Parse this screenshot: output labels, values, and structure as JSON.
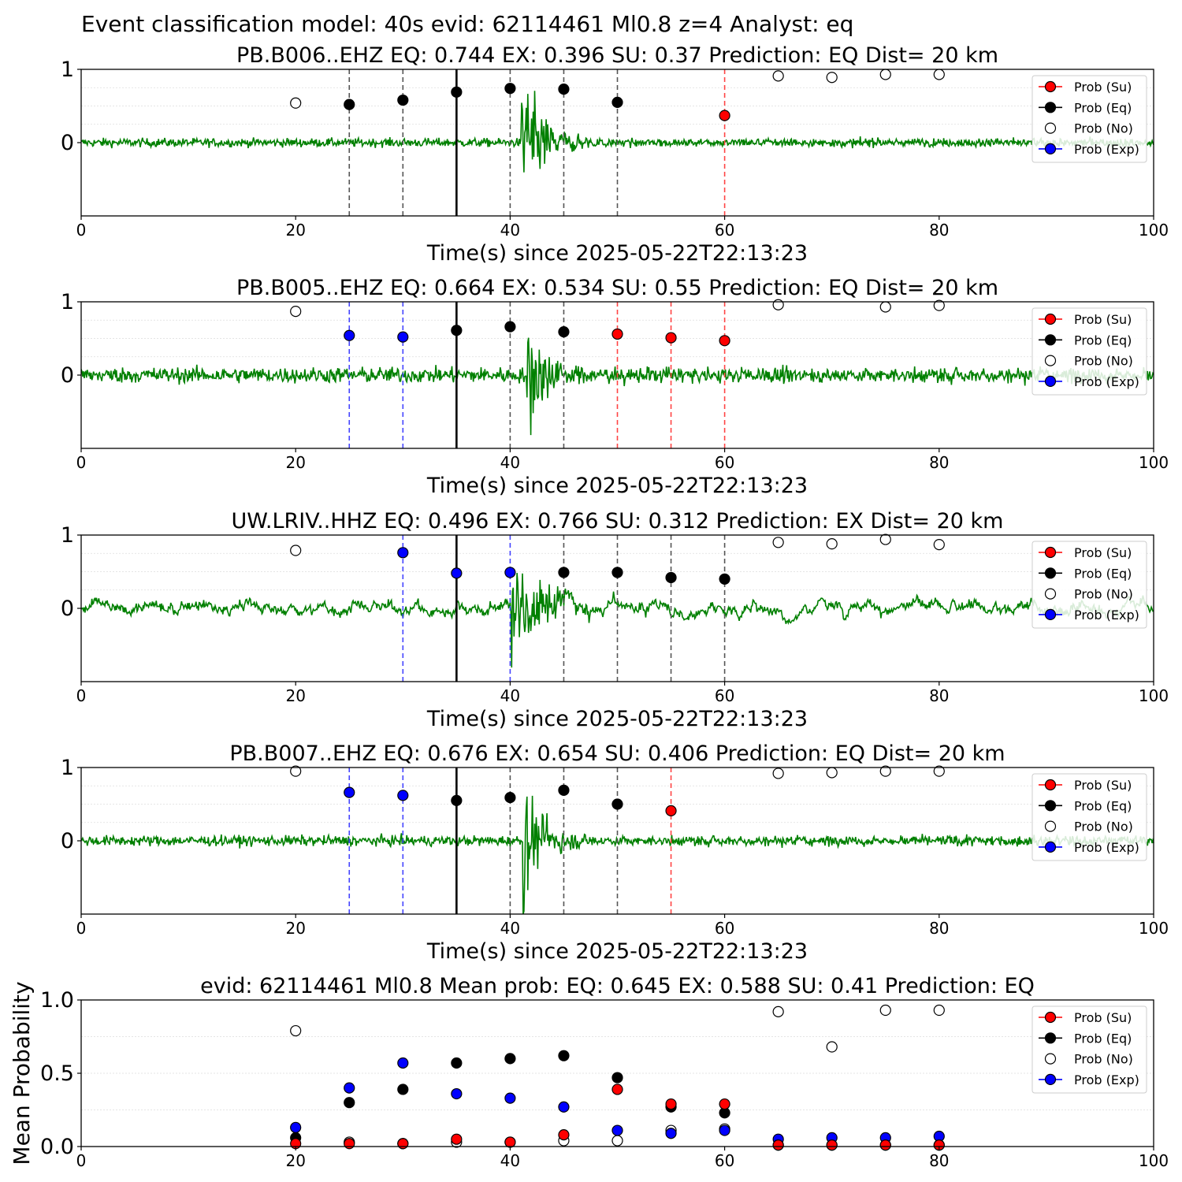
{
  "suptitle": "Event classification model: 40s evid: 62114461 Ml0.8 z=4 Analyst: eq",
  "colors": {
    "waveform": "#008000",
    "su": "#ff0000",
    "eq": "#000000",
    "no": "#ffffff",
    "exp": "#0000ff",
    "legend_su_line": "#ff0000",
    "legend_eq_line": "#000000",
    "legend_exp_line": "#0000ff"
  },
  "legend": [
    "Prob (Su)",
    "Prob (Eq)",
    "Prob (No)",
    "Prob (Exp)"
  ],
  "chart_data": [
    {
      "type": "scatter",
      "title": "PB.B006..EHZ   EQ: 0.744  EX: 0.396  SU: 0.37   Prediction: EQ    Dist= 20 km",
      "xlabel": "Time(s) since 2025-05-22T22:13:23",
      "xlim": [
        0,
        100
      ],
      "ylim": [
        -1,
        1
      ],
      "xticks": [
        "0",
        "20",
        "40",
        "60",
        "80",
        "100"
      ],
      "yticks": [
        "0",
        "1"
      ],
      "pick_time": 35,
      "windows": [
        {
          "t": 25,
          "class": "eq"
        },
        {
          "t": 30,
          "class": "eq"
        },
        {
          "t": 40,
          "class": "eq"
        },
        {
          "t": 45,
          "class": "eq"
        },
        {
          "t": 50,
          "class": "eq"
        },
        {
          "t": 60,
          "class": "su"
        }
      ],
      "points": [
        {
          "t": 20,
          "p": 0.54,
          "class": "no"
        },
        {
          "t": 25,
          "p": 0.52,
          "class": "eq"
        },
        {
          "t": 30,
          "p": 0.58,
          "class": "eq"
        },
        {
          "t": 35,
          "p": 0.69,
          "class": "eq"
        },
        {
          "t": 40,
          "p": 0.74,
          "class": "eq"
        },
        {
          "t": 45,
          "p": 0.73,
          "class": "eq"
        },
        {
          "t": 50,
          "p": 0.55,
          "class": "eq"
        },
        {
          "t": 60,
          "p": 0.37,
          "class": "su"
        },
        {
          "t": 65,
          "p": 0.91,
          "class": "no"
        },
        {
          "t": 70,
          "p": 0.89,
          "class": "no"
        },
        {
          "t": 75,
          "p": 0.93,
          "class": "no"
        },
        {
          "t": 80,
          "p": 0.93,
          "class": "no"
        }
      ],
      "waveform": {
        "noise": 0.05,
        "onset": 41.0,
        "peak": 0.95,
        "decay": 2.2,
        "lowfreq": 0
      }
    },
    {
      "type": "scatter",
      "title": "PB.B005..EHZ   EQ: 0.664  EX: 0.534  SU: 0.55   Prediction: EQ    Dist= 20 km",
      "xlabel": "Time(s) since 2025-05-22T22:13:23",
      "xlim": [
        0,
        100
      ],
      "ylim": [
        -1,
        1
      ],
      "xticks": [
        "0",
        "20",
        "40",
        "60",
        "80",
        "100"
      ],
      "yticks": [
        "0",
        "1"
      ],
      "pick_time": 35,
      "windows": [
        {
          "t": 25,
          "class": "exp"
        },
        {
          "t": 30,
          "class": "exp"
        },
        {
          "t": 40,
          "class": "eq"
        },
        {
          "t": 45,
          "class": "eq"
        },
        {
          "t": 50,
          "class": "su"
        },
        {
          "t": 55,
          "class": "su"
        },
        {
          "t": 60,
          "class": "su"
        }
      ],
      "points": [
        {
          "t": 20,
          "p": 0.87,
          "class": "no"
        },
        {
          "t": 25,
          "p": 0.54,
          "class": "exp"
        },
        {
          "t": 30,
          "p": 0.52,
          "class": "exp"
        },
        {
          "t": 35,
          "p": 0.61,
          "class": "eq"
        },
        {
          "t": 40,
          "p": 0.66,
          "class": "eq"
        },
        {
          "t": 45,
          "p": 0.59,
          "class": "eq"
        },
        {
          "t": 50,
          "p": 0.56,
          "class": "su"
        },
        {
          "t": 55,
          "p": 0.51,
          "class": "su"
        },
        {
          "t": 60,
          "p": 0.47,
          "class": "su"
        },
        {
          "t": 65,
          "p": 0.96,
          "class": "no"
        },
        {
          "t": 75,
          "p": 0.93,
          "class": "no"
        },
        {
          "t": 80,
          "p": 0.95,
          "class": "no"
        }
      ],
      "waveform": {
        "noise": 0.09,
        "onset": 41.5,
        "peak": 0.85,
        "decay": 2.0,
        "lowfreq": 0
      }
    },
    {
      "type": "scatter",
      "title": "UW.LRIV..HHZ   EQ: 0.496  EX: 0.766  SU: 0.312   Prediction: EX    Dist= 20 km",
      "xlabel": "Time(s) since 2025-05-22T22:13:23",
      "xlim": [
        0,
        100
      ],
      "ylim": [
        -1,
        1
      ],
      "xticks": [
        "0",
        "20",
        "40",
        "60",
        "80",
        "100"
      ],
      "yticks": [
        "0",
        "1"
      ],
      "pick_time": 35,
      "windows": [
        {
          "t": 30,
          "class": "exp"
        },
        {
          "t": 40,
          "class": "exp"
        },
        {
          "t": 45,
          "class": "eq"
        },
        {
          "t": 50,
          "class": "eq"
        },
        {
          "t": 55,
          "class": "eq"
        },
        {
          "t": 60,
          "class": "eq"
        }
      ],
      "points": [
        {
          "t": 20,
          "p": 0.79,
          "class": "no"
        },
        {
          "t": 30,
          "p": 0.76,
          "class": "exp"
        },
        {
          "t": 35,
          "p": 0.48,
          "class": "exp"
        },
        {
          "t": 40,
          "p": 0.49,
          "class": "exp"
        },
        {
          "t": 45,
          "p": 0.49,
          "class": "eq"
        },
        {
          "t": 50,
          "p": 0.49,
          "class": "eq"
        },
        {
          "t": 55,
          "p": 0.42,
          "class": "eq"
        },
        {
          "t": 60,
          "p": 0.4,
          "class": "eq"
        },
        {
          "t": 65,
          "p": 0.9,
          "class": "no"
        },
        {
          "t": 70,
          "p": 0.88,
          "class": "no"
        },
        {
          "t": 75,
          "p": 0.94,
          "class": "no"
        },
        {
          "t": 80,
          "p": 0.87,
          "class": "no"
        }
      ],
      "waveform": {
        "noise": 0.04,
        "onset": 40.0,
        "peak": 0.8,
        "decay": 3.0,
        "lowfreq": 0.15
      }
    },
    {
      "type": "scatter",
      "title": "PB.B007..EHZ   EQ: 0.676  EX: 0.654  SU: 0.406   Prediction: EQ    Dist= 20 km",
      "xlabel": "Time(s) since 2025-05-22T22:13:23",
      "xlim": [
        0,
        100
      ],
      "ylim": [
        -1,
        1
      ],
      "xticks": [
        "0",
        "20",
        "40",
        "60",
        "80",
        "100"
      ],
      "yticks": [
        "0",
        "1"
      ],
      "pick_time": 35,
      "windows": [
        {
          "t": 25,
          "class": "exp"
        },
        {
          "t": 30,
          "class": "exp"
        },
        {
          "t": 40,
          "class": "eq"
        },
        {
          "t": 45,
          "class": "eq"
        },
        {
          "t": 50,
          "class": "eq"
        },
        {
          "t": 55,
          "class": "su"
        }
      ],
      "points": [
        {
          "t": 20,
          "p": 0.95,
          "class": "no"
        },
        {
          "t": 25,
          "p": 0.66,
          "class": "exp"
        },
        {
          "t": 30,
          "p": 0.62,
          "class": "exp"
        },
        {
          "t": 35,
          "p": 0.55,
          "class": "eq"
        },
        {
          "t": 40,
          "p": 0.59,
          "class": "eq"
        },
        {
          "t": 45,
          "p": 0.69,
          "class": "eq"
        },
        {
          "t": 50,
          "p": 0.5,
          "class": "eq"
        },
        {
          "t": 55,
          "p": 0.41,
          "class": "su"
        },
        {
          "t": 65,
          "p": 0.92,
          "class": "no"
        },
        {
          "t": 70,
          "p": 0.93,
          "class": "no"
        },
        {
          "t": 75,
          "p": 0.95,
          "class": "no"
        },
        {
          "t": 80,
          "p": 0.95,
          "class": "no"
        }
      ],
      "waveform": {
        "noise": 0.06,
        "onset": 41.2,
        "peak": 0.9,
        "decay": 2.0,
        "lowfreq": 0
      }
    },
    {
      "type": "scatter",
      "title": "evid: 62114461  Ml0.8   Mean prob:   EQ: 0.645  EX: 0.588  SU: 0.41   Prediction: EQ",
      "xlabel": "",
      "ylabel": "Mean Probability",
      "xlim": [
        0,
        100
      ],
      "ylim": [
        0,
        1
      ],
      "xticks": [
        "0",
        "20",
        "40",
        "60",
        "80",
        "100"
      ],
      "yticks": [
        "0.0",
        "0.5",
        "1.0"
      ],
      "x": [
        20,
        25,
        30,
        35,
        40,
        45,
        50,
        55,
        60,
        65,
        70,
        75,
        80
      ],
      "series": [
        {
          "name": "Prob (No)",
          "class": "no",
          "values": [
            0.79,
            0.03,
            0.02,
            0.03,
            0.03,
            0.04,
            0.04,
            0.11,
            0.12,
            0.92,
            0.68,
            0.93,
            0.93
          ]
        },
        {
          "name": "Prob (Eq)",
          "class": "eq",
          "values": [
            0.06,
            0.3,
            0.39,
            0.57,
            0.6,
            0.62,
            0.47,
            0.27,
            0.23,
            0.01,
            0.01,
            0.01,
            0.01
          ]
        },
        {
          "name": "Prob (Exp)",
          "class": "exp",
          "values": [
            0.13,
            0.4,
            0.57,
            0.36,
            0.33,
            0.27,
            0.11,
            0.09,
            0.11,
            0.05,
            0.06,
            0.06,
            0.07
          ]
        },
        {
          "name": "Prob (Su)",
          "class": "su",
          "values": [
            0.02,
            0.02,
            0.02,
            0.05,
            0.03,
            0.08,
            0.39,
            0.29,
            0.29,
            0.01,
            0.01,
            0.01,
            0.01
          ]
        }
      ]
    }
  ]
}
